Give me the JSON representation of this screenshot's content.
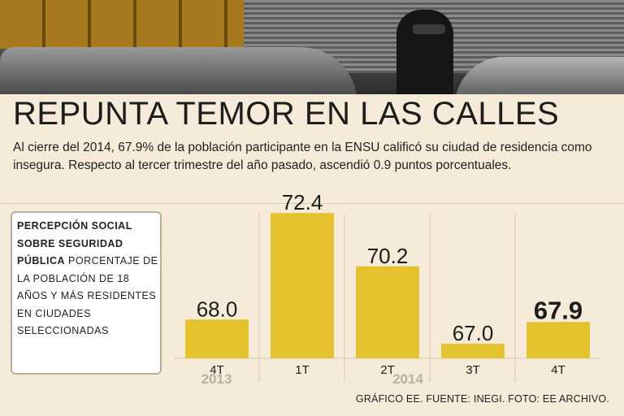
{
  "headline": "REPUNTA TEMOR EN LAS CALLES",
  "deck": "Al cierre del 2014, 67.9% de la población participante en la ENSU calificó su ciudad de residencia como insegura. Respecto al tercer trimestre del año pasado, ascendió 0.9 puntos porcentuales.",
  "legend": {
    "bold": "PERCEPCIÓN SOCIAL SOBRE SEGURIDAD PÚBLICA",
    "rest": " PORCENTAJE DE LA POBLACIÓN DE 18 AÑOS Y MÁS RESIDENTES EN CIUDADES SELECCIONADAS"
  },
  "chart_data": {
    "type": "bar",
    "title": "",
    "xlabel": "",
    "ylabel": "",
    "categories": [
      "4T",
      "1T",
      "2T",
      "3T",
      "4T"
    ],
    "year_groups": [
      {
        "label": "2013",
        "categories": [
          0
        ]
      },
      {
        "label": "2014",
        "categories": [
          1,
          2,
          3,
          4
        ]
      }
    ],
    "values": [
      68.0,
      72.4,
      70.2,
      67.0,
      67.9
    ],
    "value_labels": [
      "68.0",
      "72.4",
      "70.2",
      "67.0",
      "67.9"
    ],
    "highlight_index": 4,
    "ylim": [
      66.4,
      72.5
    ],
    "bar_color": "#e3c22e",
    "grid": "vertical separators"
  },
  "credit": "GRÁFICO EE. FUENTE: INEGI. FOTO: EE ARCHIVO."
}
